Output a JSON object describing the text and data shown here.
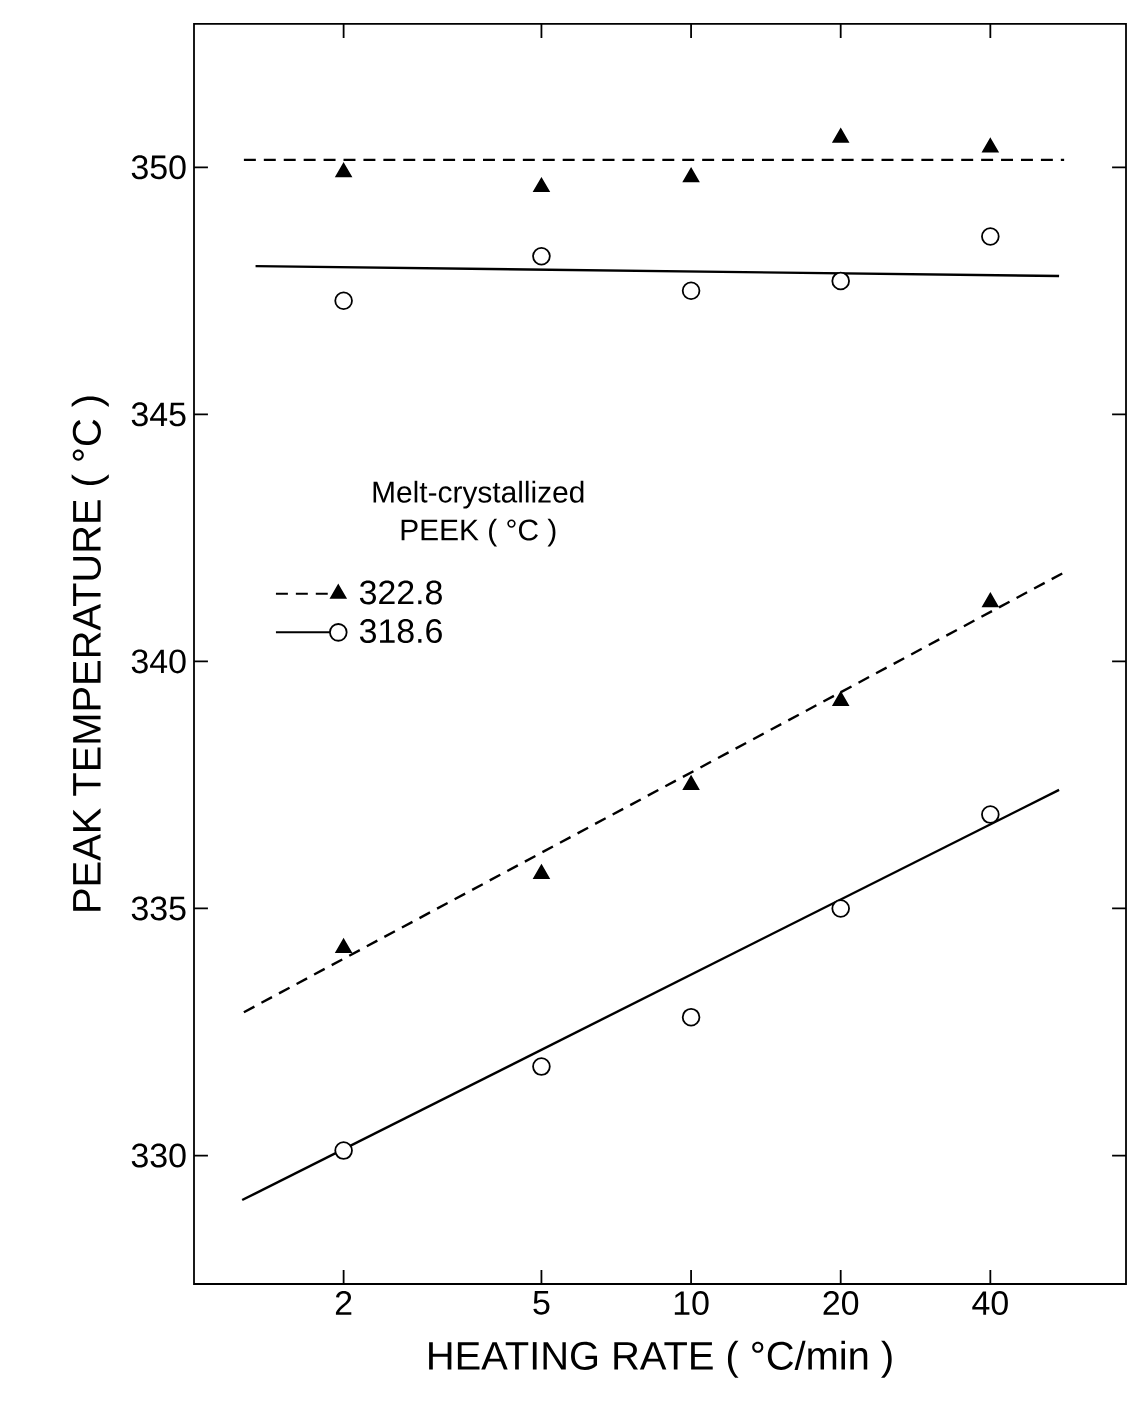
{
  "chart_data": {
    "type": "scatter",
    "xlabel": "HEATING RATE ( °C/min )",
    "ylabel": "PEAK TEMPERATURE ( °C )",
    "legend_title": "Melt-crystallized PEEK ( °C )",
    "legend": "left",
    "log": "x",
    "xlim": [
      1,
      75
    ],
    "ylim": [
      327.4,
      352.9
    ],
    "xticks": [
      2,
      5,
      10,
      20,
      40
    ],
    "yticks": [
      330,
      335,
      340,
      345,
      350
    ],
    "series": [
      {
        "name": "322.8",
        "type": "scatter",
        "marker": "triangle",
        "line_style": "dashed",
        "color": "#000000",
        "x": [
          2,
          5,
          10,
          20,
          40,
          2,
          5,
          10,
          20,
          40
        ],
        "values": [
          349.9,
          349.6,
          349.8,
          350.6,
          350.4,
          334.2,
          335.7,
          337.5,
          339.2,
          341.2
        ]
      },
      {
        "name": "318.6",
        "type": "scatter",
        "marker": "circle",
        "line_style": "solid",
        "color": "#000000",
        "x": [
          2,
          5,
          10,
          20,
          40,
          2,
          5,
          10,
          20,
          40
        ],
        "values": [
          347.3,
          348.2,
          347.5,
          347.7,
          348.6,
          330.1,
          331.8,
          332.8,
          335.0,
          336.9
        ]
      },
      {
        "type": "line",
        "line_style": "dashed",
        "color": "#000000",
        "x": [
          1.26,
          56.3
        ],
        "values": [
          350.15,
          350.15
        ]
      },
      {
        "type": "line",
        "line_style": "solid",
        "color": "#000000",
        "x": [
          1.33,
          55
        ],
        "values": [
          348.0,
          347.8
        ]
      },
      {
        "type": "line",
        "line_style": "dashed",
        "color": "#000000",
        "x": [
          1.26,
          56.3
        ],
        "values": [
          332.9,
          341.8
        ]
      },
      {
        "type": "line",
        "line_style": "solid",
        "color": "#000000",
        "x": [
          1.25,
          55
        ],
        "values": [
          329.1,
          337.4
        ]
      }
    ]
  }
}
